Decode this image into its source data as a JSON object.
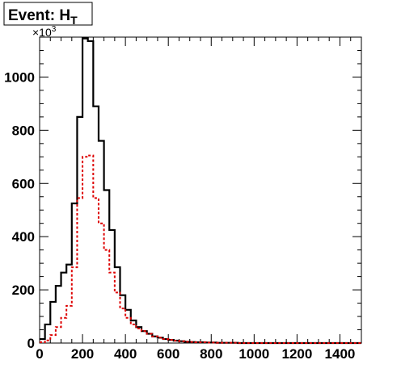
{
  "chart_data": {
    "type": "histogram",
    "title_main": "Event: H",
    "title_sub": "T",
    "y_multiplier_base": "×10",
    "y_multiplier_exp": "3",
    "xlim": [
      0,
      1500
    ],
    "ylim": [
      0,
      1150
    ],
    "bin_width": 25,
    "x_ticks": [
      0,
      200,
      400,
      600,
      800,
      1000,
      1200,
      1400
    ],
    "y_ticks": [
      0,
      200,
      400,
      600,
      800,
      1000
    ],
    "grid": false,
    "legend": "none",
    "series": [
      {
        "color": "#000000",
        "style": "solid",
        "values": [
          15,
          70,
          155,
          215,
          265,
          295,
          525,
          850,
          1145,
          1135,
          890,
          760,
          575,
          425,
          285,
          180,
          125,
          85,
          60,
          45,
          35,
          25,
          20,
          15,
          12,
          9,
          7,
          5,
          4,
          3,
          3,
          2,
          2,
          1,
          1,
          1,
          1,
          0,
          0,
          0,
          0,
          0,
          0,
          0,
          0,
          0,
          0,
          0,
          0,
          0,
          0,
          0,
          0,
          0,
          0,
          0,
          0,
          0,
          0,
          0
        ]
      },
      {
        "color": "#dd0000",
        "style": "dotted",
        "values": [
          3,
          10,
          30,
          60,
          95,
          140,
          285,
          545,
          700,
          705,
          545,
          450,
          350,
          265,
          190,
          130,
          95,
          70,
          55,
          45,
          35,
          25,
          20,
          15,
          12,
          9,
          7,
          5,
          4,
          3,
          3,
          2,
          2,
          1,
          1,
          1,
          1,
          0,
          0,
          0,
          0,
          0,
          0,
          0,
          0,
          0,
          0,
          0,
          0,
          0,
          0,
          0,
          0,
          0,
          0,
          0,
          0,
          0,
          0,
          0
        ]
      }
    ]
  }
}
